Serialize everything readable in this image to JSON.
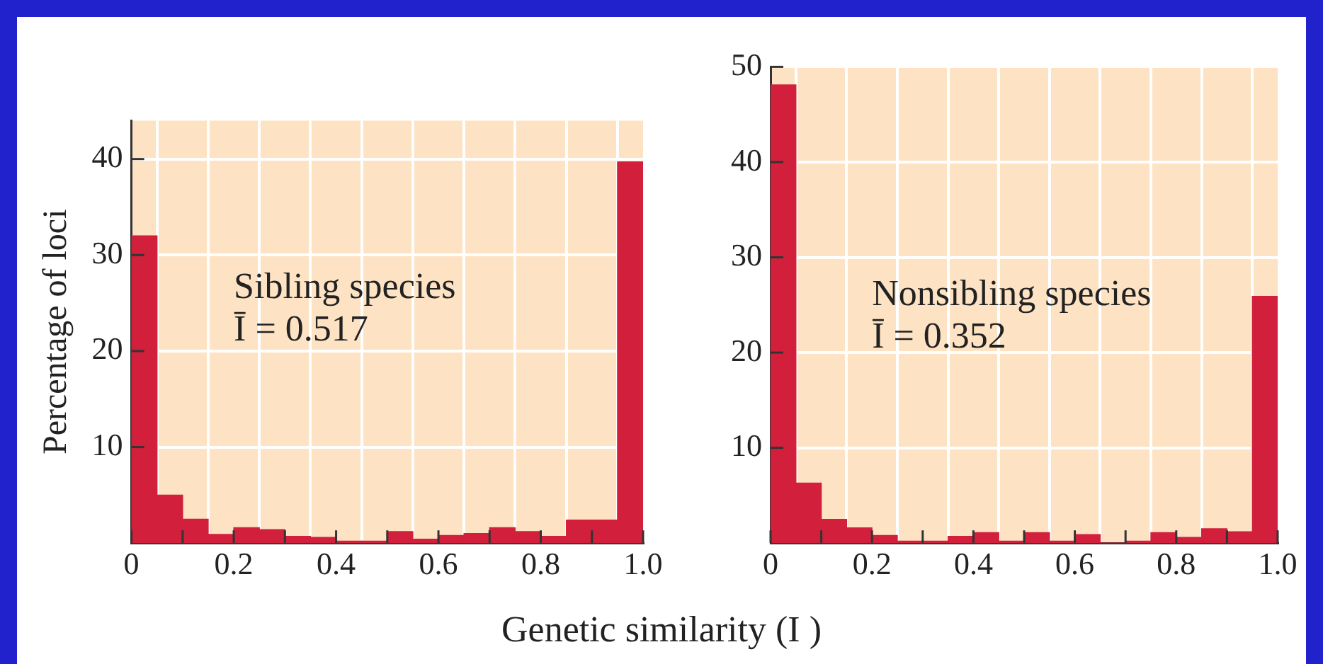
{
  "chart_data": [
    {
      "type": "histogram",
      "ylabel": "Percentage of loci",
      "xlabel": "Genetic similarity (I )",
      "bins": [
        0,
        0.05,
        0.1,
        0.15,
        0.2,
        0.25,
        0.3,
        0.35,
        0.4,
        0.45,
        0.5,
        0.55,
        0.6,
        0.65,
        0.7,
        0.75,
        0.8,
        0.85,
        0.9,
        0.95,
        1.0
      ],
      "values": [
        32,
        5,
        2.5,
        0.9,
        1.6,
        1.4,
        0.7,
        0.6,
        0.2,
        0.2,
        1.2,
        0.4,
        0.8,
        1.0,
        1.6,
        1.2,
        0.7,
        2.4,
        2.4,
        39.7
      ],
      "color": "#d21f3c",
      "xlim": [
        0,
        1
      ],
      "ylim": [
        0,
        44
      ],
      "xticks": [
        0,
        {
          "value": 0.1,
          "label": null
        },
        0.2,
        {
          "value": 0.3,
          "label": null
        },
        0.4,
        {
          "value": 0.5,
          "label": null
        },
        0.6,
        {
          "value": 0.7,
          "label": null
        },
        0.8,
        {
          "value": 0.9,
          "label": null
        },
        {
          "value": 1,
          "label": "1.0"
        }
      ],
      "yticks": [
        10,
        20,
        30,
        40
      ],
      "grid": true,
      "annotations": [
        "Sibling species",
        "Ī = 0.517"
      ]
    },
    {
      "type": "histogram",
      "bins": [
        0,
        0.05,
        0.1,
        0.15,
        0.2,
        0.25,
        0.3,
        0.35,
        0.4,
        0.45,
        0.5,
        0.55,
        0.6,
        0.65,
        0.7,
        0.75,
        0.8,
        0.85,
        0.9,
        0.95,
        1.0
      ],
      "values": [
        48.1,
        6.3,
        2.5,
        1.6,
        0.8,
        0.2,
        0.2,
        0.7,
        1.1,
        0.2,
        1.1,
        0.2,
        0.9,
        0,
        0.2,
        1.1,
        0.6,
        1.5,
        1.2,
        25.9
      ],
      "color": "#d21f3c",
      "xlim": [
        0,
        1
      ],
      "ylim": [
        0,
        50
      ],
      "xticks": [
        0,
        {
          "value": 0.1,
          "label": null
        },
        0.2,
        {
          "value": 0.3,
          "label": null
        },
        0.4,
        {
          "value": 0.5,
          "label": null
        },
        0.6,
        {
          "value": 0.7,
          "label": null
        },
        0.8,
        {
          "value": 0.9,
          "label": null
        },
        {
          "value": 1,
          "label": "1.0"
        }
      ],
      "yticks": [
        10,
        20,
        30,
        40,
        50
      ],
      "grid": true,
      "annotations": [
        "Nonsibling species",
        "Ī = 0.352"
      ]
    }
  ]
}
